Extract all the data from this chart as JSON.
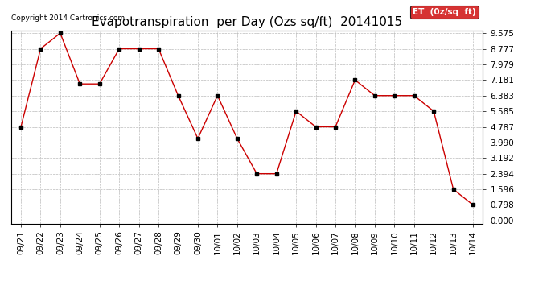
{
  "title": "Evapotranspiration  per Day (Ozs sq/ft)  20141015",
  "copyright": "Copyright 2014 Cartronics.com",
  "legend_label": "ET  (0z/sq  ft)",
  "x_labels": [
    "09/21",
    "09/22",
    "09/23",
    "09/24",
    "09/25",
    "09/26",
    "09/27",
    "09/28",
    "09/29",
    "09/30",
    "10/01",
    "10/02",
    "10/03",
    "10/04",
    "10/05",
    "10/06",
    "10/07",
    "10/08",
    "10/09",
    "10/10",
    "10/11",
    "10/12",
    "10/13",
    "10/14"
  ],
  "y_values": [
    4.787,
    8.777,
    9.575,
    6.981,
    6.981,
    8.777,
    8.777,
    8.777,
    6.383,
    4.19,
    6.383,
    4.19,
    2.394,
    2.394,
    5.585,
    4.787,
    4.787,
    7.181,
    6.383,
    6.383,
    6.383,
    5.585,
    1.596,
    0.798
  ],
  "y_ticks": [
    0.0,
    0.798,
    1.596,
    2.394,
    3.192,
    3.99,
    4.787,
    5.585,
    6.383,
    7.181,
    7.979,
    8.777,
    9.575
  ],
  "line_color": "#cc0000",
  "marker": "s",
  "marker_color": "#000000",
  "marker_size": 3,
  "background_color": "#ffffff",
  "grid_color": "#bbbbbb",
  "legend_bg": "#cc0000",
  "legend_text_color": "#ffffff",
  "title_fontsize": 11,
  "copyright_fontsize": 6.5,
  "tick_fontsize": 7.5,
  "legend_fontsize": 7.5,
  "ylim_min": 0.0,
  "ylim_max": 9.575
}
